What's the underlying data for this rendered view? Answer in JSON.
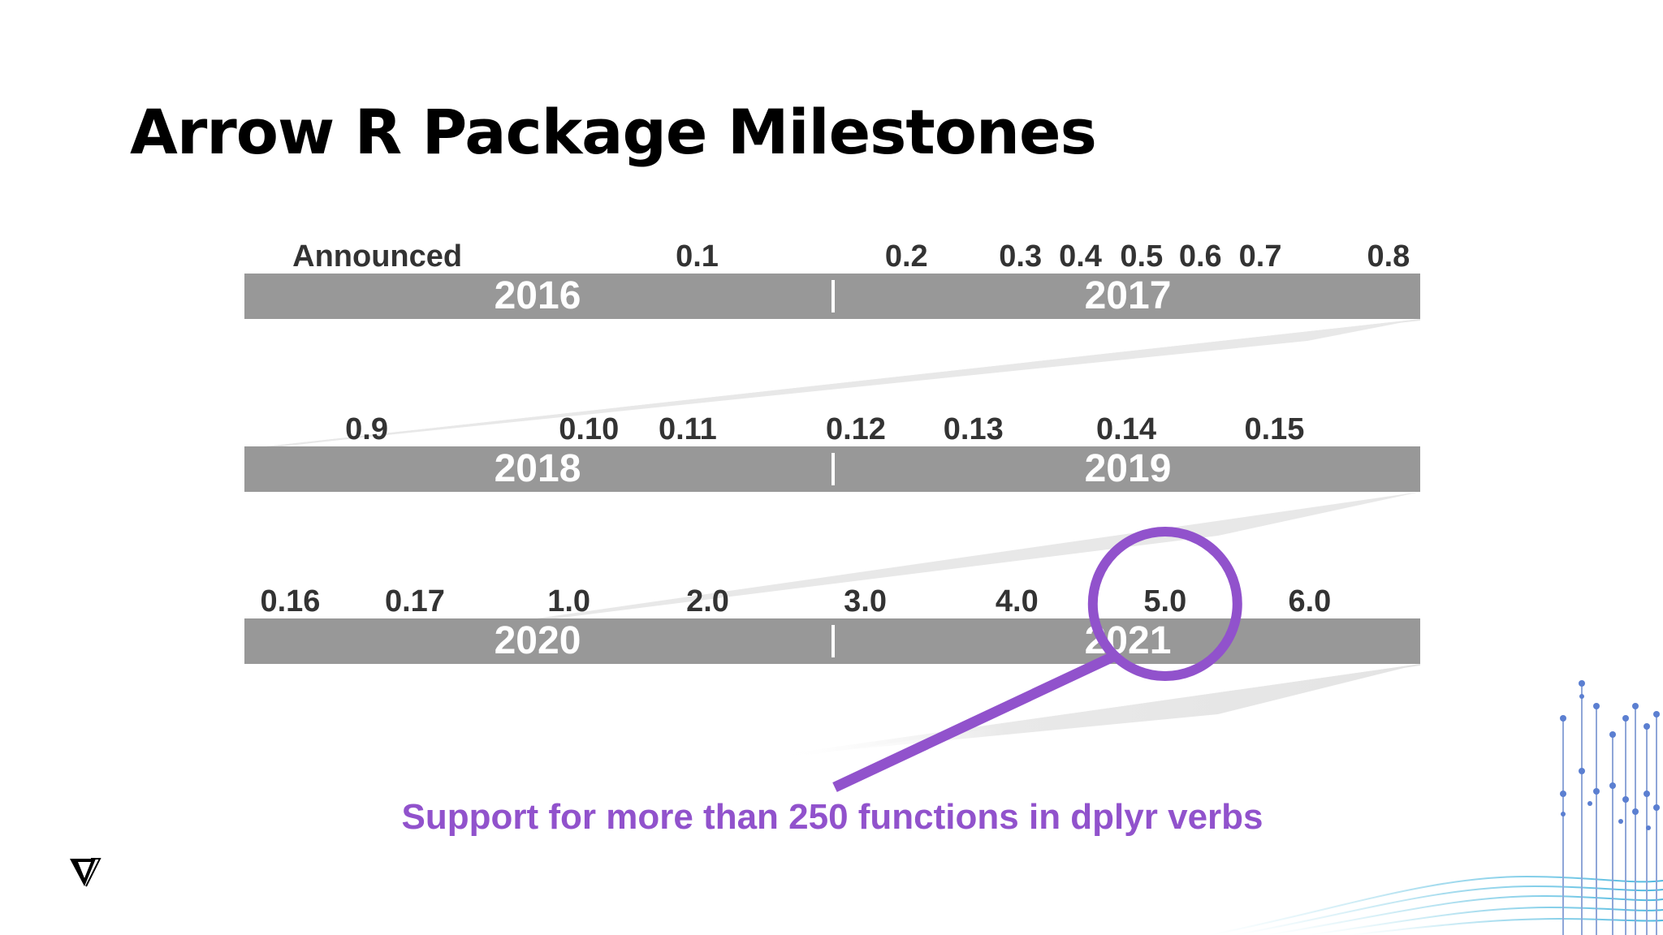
{
  "title": "Arrow R Package Milestones",
  "accent_color": "#9152cc",
  "bar_color": "#989898",
  "highlight": {
    "target_version": "5.0",
    "text": "Support for more than 250 functions in dplyr verbs"
  },
  "rows": [
    {
      "years": [
        "2016",
        "2017"
      ],
      "versions": [
        {
          "label": "Announced",
          "pos": 0.113
        },
        {
          "label": "0.1",
          "pos": 0.385
        },
        {
          "label": "0.2",
          "pos": 0.563
        },
        {
          "label": "0.3",
          "pos": 0.66
        },
        {
          "label": "0.4",
          "pos": 0.711
        },
        {
          "label": "0.5",
          "pos": 0.763
        },
        {
          "label": "0.6",
          "pos": 0.813
        },
        {
          "label": "0.7",
          "pos": 0.864
        },
        {
          "label": "0.8",
          "pos": 0.973
        }
      ]
    },
    {
      "years": [
        "2018",
        "2019"
      ],
      "versions": [
        {
          "label": "0.9",
          "pos": 0.104
        },
        {
          "label": "0.10",
          "pos": 0.293
        },
        {
          "label": "0.11",
          "pos": 0.377
        },
        {
          "label": "0.12",
          "pos": 0.52
        },
        {
          "label": "0.13",
          "pos": 0.62
        },
        {
          "label": "0.14",
          "pos": 0.75
        },
        {
          "label": "0.15",
          "pos": 0.876
        }
      ]
    },
    {
      "years": [
        "2020",
        "2021"
      ],
      "versions": [
        {
          "label": "0.16",
          "pos": 0.039
        },
        {
          "label": "0.17",
          "pos": 0.145
        },
        {
          "label": "1.0",
          "pos": 0.276
        },
        {
          "label": "2.0",
          "pos": 0.394
        },
        {
          "label": "3.0",
          "pos": 0.528
        },
        {
          "label": "4.0",
          "pos": 0.657
        },
        {
          "label": "5.0",
          "pos": 0.783
        },
        {
          "label": "6.0",
          "pos": 0.906
        }
      ]
    }
  ]
}
